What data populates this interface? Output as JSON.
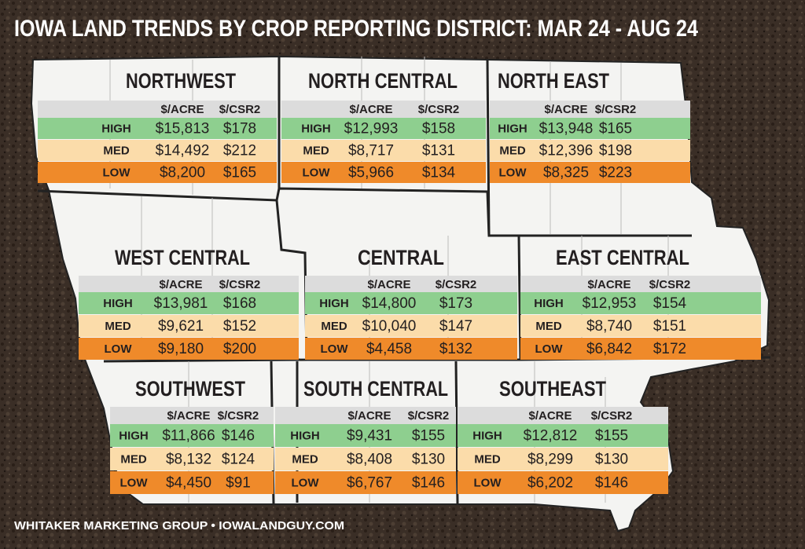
{
  "title": "IOWA LAND TRENDS BY CROP REPORTING DISTRICT: MAR 24 - AUG 24",
  "footer": "WHITAKER MARKETING GROUP • IOWALANDGUY.COM",
  "districts": [
    {
      "name": "NORTHWEST",
      "headers": [
        "$/ACRE",
        "$/CSR2"
      ],
      "rows": [
        {
          "label": "HIGH",
          "acre": "$15,813",
          "csr": "$178"
        },
        {
          "label": "MED",
          "acre": "$14,492",
          "csr": "$212"
        },
        {
          "label": "LOW",
          "acre": "$8,200",
          "csr": "$165"
        }
      ]
    },
    {
      "name": "NORTH CENTRAL",
      "headers": [
        "$/ACRE",
        "$/CSR2"
      ],
      "rows": [
        {
          "label": "HIGH",
          "acre": "$12,993",
          "csr": "$158"
        },
        {
          "label": "MED",
          "acre": "$8,717",
          "csr": "$131"
        },
        {
          "label": "LOW",
          "acre": "$5,966",
          "csr": "$134"
        }
      ]
    },
    {
      "name": "NORTH EAST",
      "headers": [
        "$/ACRE",
        "$/CSR2"
      ],
      "rows": [
        {
          "label": "HIGH",
          "acre": "$13,948",
          "csr": "$165"
        },
        {
          "label": "MED",
          "acre": "$12,396",
          "csr": "$198"
        },
        {
          "label": "LOW",
          "acre": "$8,325",
          "csr": "$223"
        }
      ]
    },
    {
      "name": "WEST CENTRAL",
      "headers": [
        "$/ACRE",
        "$/CSR2"
      ],
      "rows": [
        {
          "label": "HIGH",
          "acre": "$13,981",
          "csr": "$168"
        },
        {
          "label": "MED",
          "acre": "$9,621",
          "csr": "$152"
        },
        {
          "label": "LOW",
          "acre": "$9,180",
          "csr": "$200"
        }
      ]
    },
    {
      "name": "CENTRAL",
      "headers": [
        "$/ACRE",
        "$/CSR2"
      ],
      "rows": [
        {
          "label": "HIGH",
          "acre": "$14,800",
          "csr": "$173"
        },
        {
          "label": "MED",
          "acre": "$10,040",
          "csr": "$147"
        },
        {
          "label": "LOW",
          "acre": "$4,458",
          "csr": "$132"
        }
      ]
    },
    {
      "name": "EAST CENTRAL",
      "headers": [
        "$/ACRE",
        "$/CSR2"
      ],
      "rows": [
        {
          "label": "HIGH",
          "acre": "$12,953",
          "csr": "$154"
        },
        {
          "label": "MED",
          "acre": "$8,740",
          "csr": "$151"
        },
        {
          "label": "LOW",
          "acre": "$6,842",
          "csr": "$172"
        }
      ]
    },
    {
      "name": "SOUTHWEST",
      "headers": [
        "$/ACRE",
        "$/CSR2"
      ],
      "rows": [
        {
          "label": "HIGH",
          "acre": "$11,866",
          "csr": "$146"
        },
        {
          "label": "MED",
          "acre": "$8,132",
          "csr": "$124"
        },
        {
          "label": "LOW",
          "acre": "$4,450",
          "csr": "$91"
        }
      ]
    },
    {
      "name": "SOUTH CENTRAL",
      "headers": [
        "$/ACRE",
        "$/CSR2"
      ],
      "rows": [
        {
          "label": "HIGH",
          "acre": "$9,431",
          "csr": "$155"
        },
        {
          "label": "MED",
          "acre": "$8,408",
          "csr": "$130"
        },
        {
          "label": "LOW",
          "acre": "$6,767",
          "csr": "$146"
        }
      ]
    },
    {
      "name": "SOUTHEAST",
      "headers": [
        "$/ACRE",
        "$/CSR2"
      ],
      "rows": [
        {
          "label": "HIGH",
          "acre": "$12,812",
          "csr": "$155"
        },
        {
          "label": "MED",
          "acre": "$8,299",
          "csr": "$130"
        },
        {
          "label": "LOW",
          "acre": "$6,202",
          "csr": "$146"
        }
      ]
    }
  ]
}
